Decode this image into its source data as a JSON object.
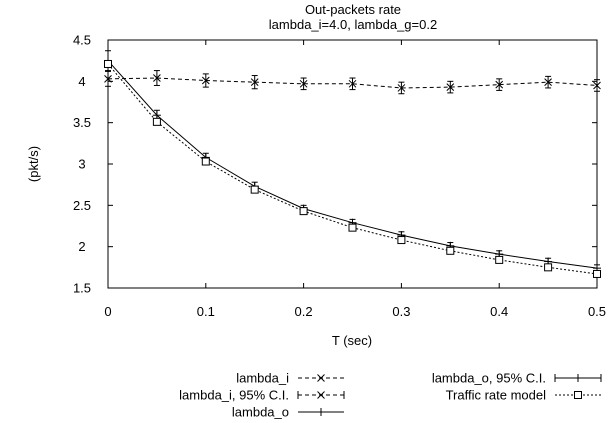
{
  "chart_data": {
    "type": "line",
    "title": "Out-packets rate",
    "subtitle": "lambda_i=4.0, lambda_g=0.2",
    "xlabel": "T (sec)",
    "ylabel": "(pkt/s)",
    "xlim": [
      0,
      0.5
    ],
    "ylim": [
      1.5,
      4.5
    ],
    "xticks": [
      0,
      0.1,
      0.2,
      0.3,
      0.4,
      0.5
    ],
    "xtick_labels": [
      "0",
      "0.1",
      "0.2",
      "0.3",
      "0.4",
      "0.5"
    ],
    "yticks": [
      1.5,
      2,
      2.5,
      3,
      3.5,
      4,
      4.5
    ],
    "ytick_labels": [
      "1.5",
      "2",
      "2.5",
      "3",
      "3.5",
      "4",
      "4.5"
    ],
    "grid": false,
    "legend_placement": "below",
    "x": [
      0,
      0.05,
      0.1,
      0.15,
      0.2,
      0.25,
      0.3,
      0.35,
      0.4,
      0.45,
      0.5
    ],
    "series": [
      {
        "name": "lambda_i",
        "ci_name": "lambda_i, 95% C.I.",
        "style": "dashed",
        "marker": "x",
        "values": [
          4.03,
          4.04,
          4.01,
          3.99,
          3.97,
          3.97,
          3.92,
          3.93,
          3.96,
          3.99,
          3.95
        ],
        "ci_halfwidth": [
          0.09,
          0.09,
          0.08,
          0.08,
          0.07,
          0.07,
          0.07,
          0.07,
          0.07,
          0.07,
          0.07
        ]
      },
      {
        "name": "lambda_o",
        "ci_name": "lambda_o, 95% C.I.",
        "style": "solid",
        "marker": "plus",
        "values": [
          4.25,
          3.59,
          3.08,
          2.73,
          2.46,
          2.29,
          2.14,
          2.01,
          1.91,
          1.82,
          1.74
        ],
        "ci_halfwidth": [
          0.12,
          0.06,
          0.05,
          0.05,
          0.04,
          0.04,
          0.04,
          0.04,
          0.04,
          0.04,
          0.04
        ]
      },
      {
        "name": "Traffic rate model",
        "style": "dotted",
        "marker": "square",
        "values": [
          4.21,
          3.51,
          3.03,
          2.69,
          2.43,
          2.23,
          2.08,
          1.95,
          1.84,
          1.75,
          1.67
        ]
      }
    ]
  }
}
